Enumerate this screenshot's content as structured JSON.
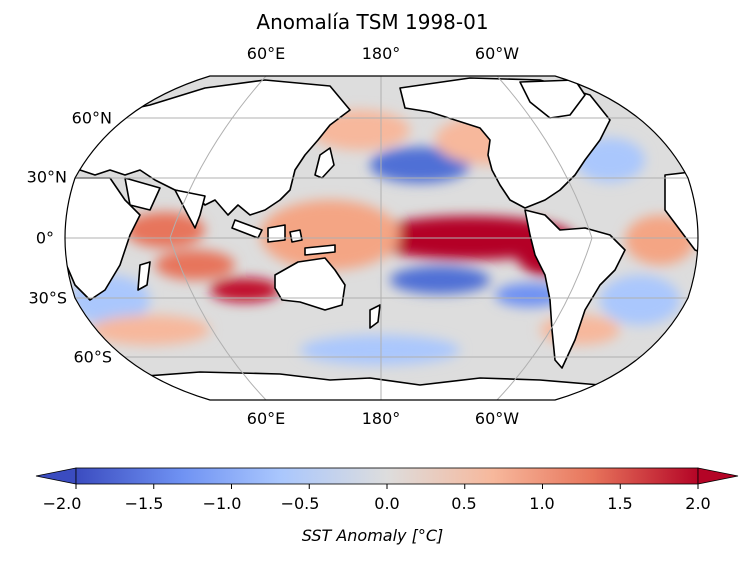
{
  "title": "Anomalía TSM  1998-01",
  "top_lon_labels": [
    "60°E",
    "180°",
    "60°W"
  ],
  "bottom_lon_labels": [
    "60°E",
    "180°",
    "60°W"
  ],
  "lat_labels": [
    "60°N",
    "30°N",
    "0°",
    "30°S",
    "60°S"
  ],
  "colorbar": {
    "ticks": [
      "−2.0",
      "−1.5",
      "−1.0",
      "−0.5",
      "0.0",
      "0.5",
      "1.0",
      "1.5",
      "2.0"
    ],
    "label": "SST Anomaly [°C]",
    "range": [
      -2.0,
      2.0
    ],
    "colormap": "coolwarm",
    "colors": [
      "#3b4cc0",
      "#6f92f3",
      "#aac7fd",
      "#dddddd",
      "#f7b89c",
      "#e7745b",
      "#b40426"
    ]
  },
  "map": {
    "projection": "Robinson",
    "central_longitude": 180,
    "ocean_neutral": "#dddddd",
    "land_color": "#ffffff",
    "coastline_color": "#000000",
    "grid_color": "#b0b0b0"
  }
}
